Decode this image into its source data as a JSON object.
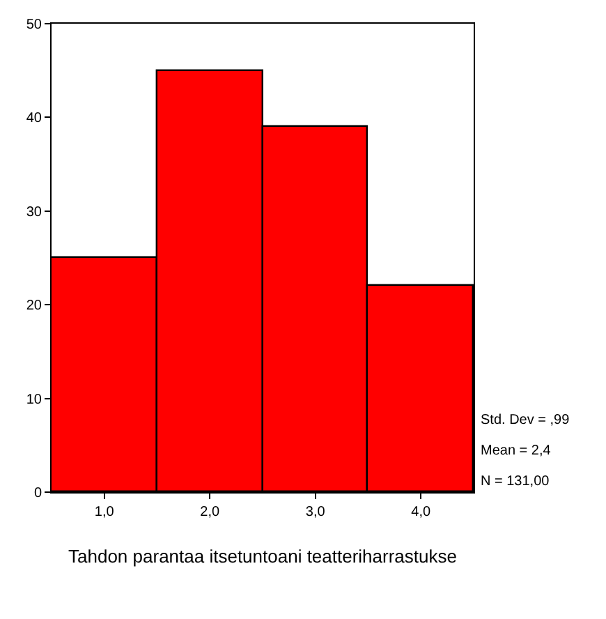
{
  "chart_data": {
    "type": "histogram",
    "xlabel": "Tahdon parantaa itsetuntoani teatteriharrastukse",
    "bins": [
      0.5,
      1.5,
      2.5,
      3.5,
      4.5
    ],
    "values": [
      25,
      45,
      39,
      22
    ],
    "color": "#ff0000",
    "xlim": [
      0.5,
      4.5
    ],
    "xticks": [
      {
        "value": 1,
        "label": "1,0"
      },
      {
        "value": 2,
        "label": "2,0"
      },
      {
        "value": 3,
        "label": "3,0"
      },
      {
        "value": 4,
        "label": "4,0"
      }
    ],
    "ylim": [
      0,
      50
    ],
    "yticks": [
      0,
      10,
      20,
      30,
      40,
      50
    ],
    "annotations": [
      "Std. Dev = ,99",
      "Mean = 2,4",
      "N = 131,00"
    ]
  }
}
